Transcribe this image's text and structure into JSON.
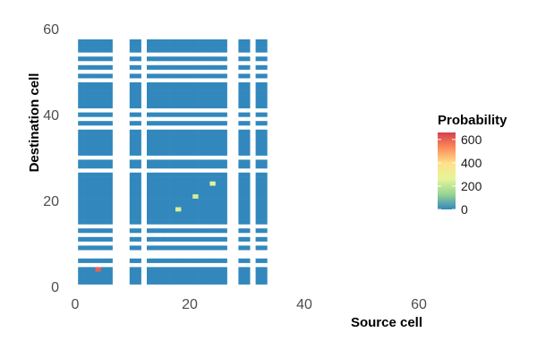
{
  "chart_data": {
    "type": "heatmap",
    "title": "",
    "xlabel": "Source cell",
    "ylabel": "Destination cell",
    "xlim": [
      -2,
      62
    ],
    "ylim": [
      0,
      60
    ],
    "x_ticks": [
      0,
      20,
      40,
      60
    ],
    "y_ticks": [
      0,
      20,
      40,
      60
    ],
    "grid": false,
    "x_cells": [
      1,
      2,
      3,
      4,
      5,
      6,
      10,
      11,
      13,
      14,
      15,
      16,
      17,
      18,
      19,
      20,
      21,
      22,
      23,
      24,
      25,
      26,
      29,
      30,
      32,
      33
    ],
    "y_cells": [
      1,
      2,
      3,
      4,
      6,
      9,
      11,
      13,
      15,
      16,
      17,
      18,
      19,
      20,
      21,
      22,
      23,
      24,
      25,
      26,
      28,
      29,
      31,
      32,
      33,
      34,
      35,
      36,
      38,
      40,
      42,
      43,
      44,
      45,
      46,
      47,
      49,
      51,
      53,
      55,
      56,
      57
    ],
    "base_value": 0,
    "highlights": [
      {
        "x": 4,
        "y": 4,
        "value": 600
      },
      {
        "x": 18,
        "y": 18,
        "value": 240
      },
      {
        "x": 21,
        "y": 21,
        "value": 230
      },
      {
        "x": 24,
        "y": 24,
        "value": 260
      }
    ],
    "colorbar": {
      "title": "Probability",
      "ticks": [
        0,
        200,
        400,
        600
      ],
      "min": 0,
      "max": 660,
      "colors": [
        "#3288bd",
        "#99d594",
        "#e6f598",
        "#fee08b",
        "#fc8d59",
        "#d53e4f"
      ]
    },
    "legend_position": "right"
  }
}
